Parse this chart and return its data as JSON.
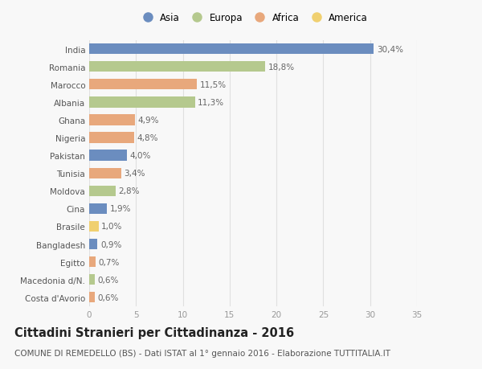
{
  "categories": [
    "India",
    "Romania",
    "Marocco",
    "Albania",
    "Ghana",
    "Nigeria",
    "Pakistan",
    "Tunisia",
    "Moldova",
    "Cina",
    "Brasile",
    "Bangladesh",
    "Egitto",
    "Macedonia d/N.",
    "Costa d'Avorio"
  ],
  "values": [
    30.4,
    18.8,
    11.5,
    11.3,
    4.9,
    4.8,
    4.0,
    3.4,
    2.8,
    1.9,
    1.0,
    0.9,
    0.7,
    0.6,
    0.6
  ],
  "labels": [
    "30,4%",
    "18,8%",
    "11,5%",
    "11,3%",
    "4,9%",
    "4,8%",
    "4,0%",
    "3,4%",
    "2,8%",
    "1,9%",
    "1,0%",
    "0,9%",
    "0,7%",
    "0,6%",
    "0,6%"
  ],
  "colors": [
    "#6b8dbf",
    "#b5c98e",
    "#e8a87c",
    "#b5c98e",
    "#e8a87c",
    "#e8a87c",
    "#6b8dbf",
    "#e8a87c",
    "#b5c98e",
    "#6b8dbf",
    "#f0d070",
    "#6b8dbf",
    "#e8a87c",
    "#b5c98e",
    "#e8a87c"
  ],
  "legend_labels": [
    "Asia",
    "Europa",
    "Africa",
    "America"
  ],
  "legend_colors": [
    "#6b8dbf",
    "#b5c98e",
    "#e8a87c",
    "#f0d070"
  ],
  "title": "Cittadini Stranieri per Cittadinanza - 2016",
  "subtitle": "COMUNE DI REMEDELLO (BS) - Dati ISTAT al 1° gennaio 2016 - Elaborazione TUTTITALIA.IT",
  "xlim": [
    0,
    35
  ],
  "xticks": [
    0,
    5,
    10,
    15,
    20,
    25,
    30,
    35
  ],
  "background_color": "#f8f8f8",
  "grid_color": "#e0e0e0",
  "bar_height": 0.6,
  "label_fontsize": 7.5,
  "tick_fontsize": 7.5,
  "title_fontsize": 10.5,
  "subtitle_fontsize": 7.5
}
